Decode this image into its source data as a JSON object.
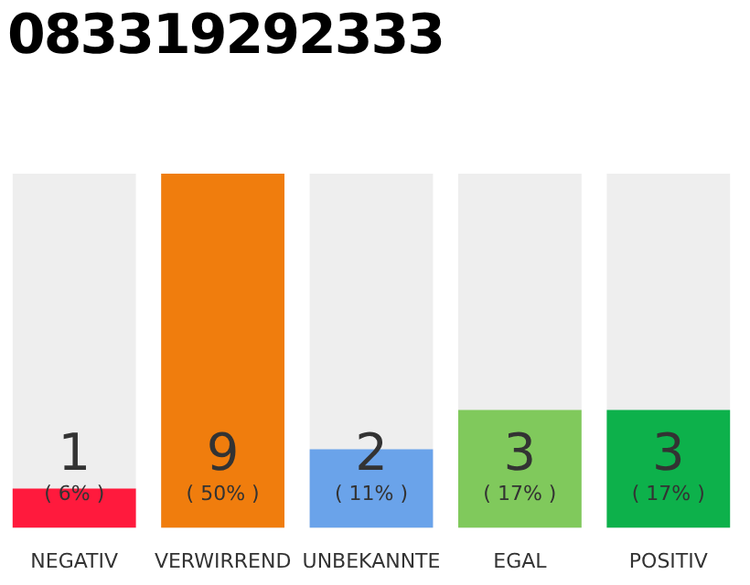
{
  "chart_data": {
    "type": "bar",
    "title": "083319292333",
    "categories": [
      "NEGATIV",
      "VERWIRREND",
      "UNBEKANNTE",
      "EGAL",
      "POSITIV"
    ],
    "values": [
      1,
      9,
      2,
      3,
      3
    ],
    "colors": [
      "#ff1a3d",
      "#f07d0d",
      "#6aa3ea",
      "#80c95c",
      "#0db14b"
    ],
    "ylim": [
      0,
      9
    ],
    "data_labels": true,
    "tick_labels": "x",
    "grid": false,
    "legend": false,
    "annotations": [
      "( 6% )",
      "( 50% )",
      "( 11% )",
      "( 17% )",
      "( 17% )"
    ]
  }
}
